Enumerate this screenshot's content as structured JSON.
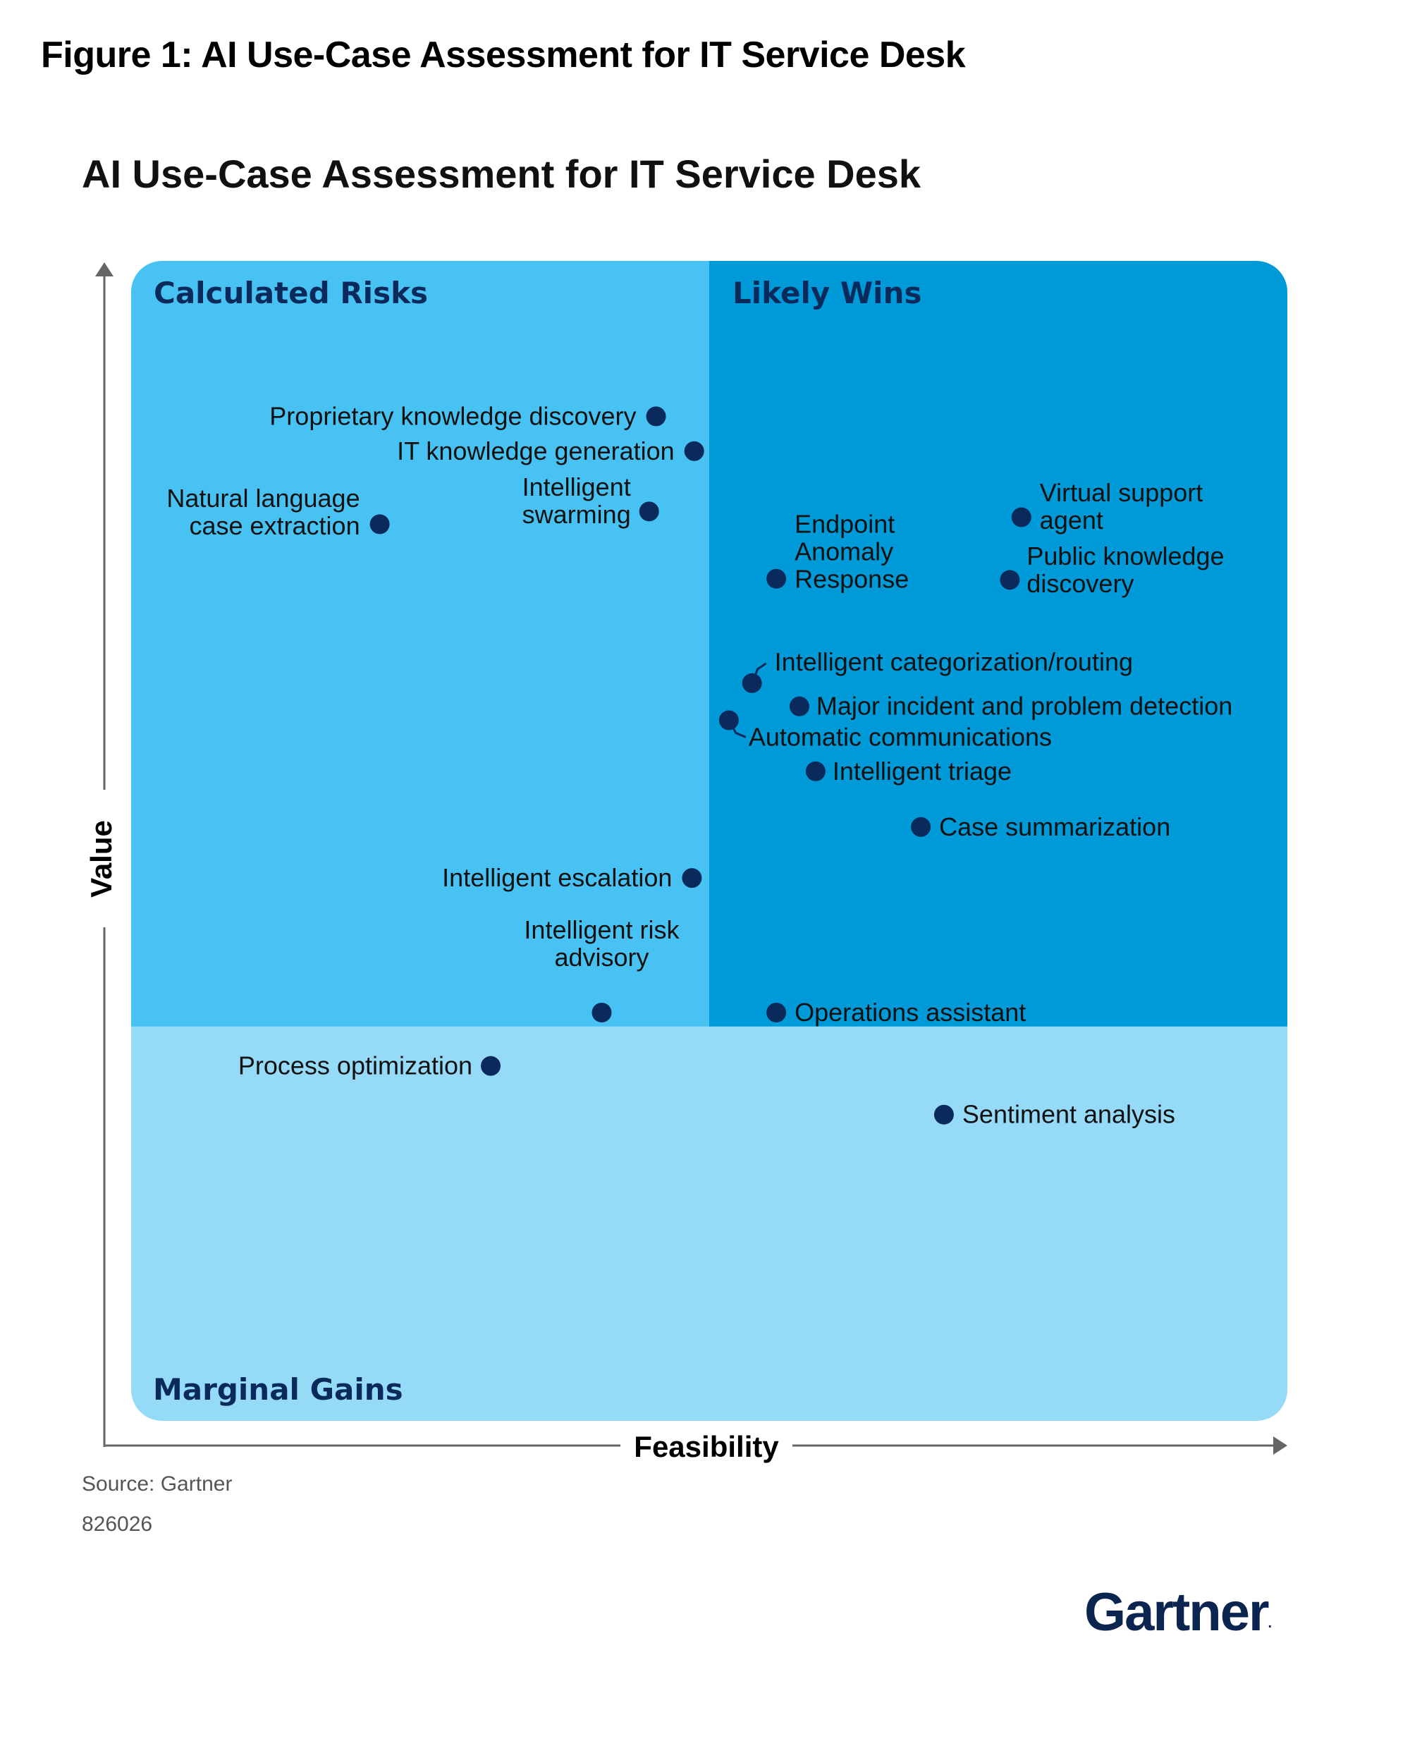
{
  "figure_caption": "Figure 1: AI Use-Case Assessment for IT Service Desk",
  "source": "Source: Gartner",
  "doc_id": "826026",
  "logo": {
    "text": "Gartner",
    "mark": "."
  },
  "colors": {
    "calculated_risks": "#48c2f2",
    "likely_wins": "#009ad8",
    "marginal_gains": "#95dbf8",
    "point": "#0b2a5c",
    "quadrant_text": "#0b2a5c",
    "axis": "#666666"
  },
  "chart_data": {
    "type": "scatter",
    "title": "AI Use-Case Assessment for IT Service Desk",
    "xlabel": "Feasibility",
    "ylabel": "Value",
    "xlim": [
      0,
      100
    ],
    "ylim": [
      0,
      100
    ],
    "feasibility_threshold": 50,
    "value_threshold": 34,
    "quadrants": {
      "top_left": "Calculated Risks",
      "top_right": "Likely Wins",
      "bottom": "Marginal Gains"
    },
    "points": [
      {
        "name": "Proprietary knowledge discovery",
        "x": 45.4,
        "y": 86.6,
        "lines": [
          "Proprietary knowledge discovery"
        ]
      },
      {
        "name": "IT knowledge generation",
        "x": 48.7,
        "y": 83.6,
        "lines": [
          "IT knowledge generation"
        ]
      },
      {
        "name": "Natural language case extraction",
        "x": 21.5,
        "y": 77.3,
        "lines": [
          "Natural language",
          "case extraction"
        ]
      },
      {
        "name": "Intelligent swarming",
        "x": 44.8,
        "y": 78.4,
        "lines": [
          "Intelligent",
          "swarming"
        ]
      },
      {
        "name": "Endpoint Anomaly Response",
        "x": 55.8,
        "y": 72.6,
        "lines": [
          "Endpoint",
          "Anomaly",
          "Response"
        ]
      },
      {
        "name": "Virtual support agent",
        "x": 77.0,
        "y": 77.9,
        "lines": [
          "Virtual support",
          "agent"
        ]
      },
      {
        "name": "Public knowledge discovery",
        "x": 76.0,
        "y": 72.5,
        "lines": [
          "Public knowledge",
          "discovery"
        ]
      },
      {
        "name": "Intelligent categorization/routing",
        "x": 53.7,
        "y": 63.6,
        "lines": [
          "Intelligent categorization/routing"
        ]
      },
      {
        "name": "Major incident and problem detection",
        "x": 57.8,
        "y": 61.6,
        "lines": [
          "Major incident and problem detection"
        ]
      },
      {
        "name": "Automatic communications",
        "x": 51.7,
        "y": 60.4,
        "lines": [
          "Automatic communications"
        ]
      },
      {
        "name": "Intelligent triage",
        "x": 59.2,
        "y": 56.0,
        "lines": [
          "Intelligent triage"
        ]
      },
      {
        "name": "Case summarization",
        "x": 68.3,
        "y": 51.2,
        "lines": [
          "Case summarization"
        ]
      },
      {
        "name": "Intelligent escalation",
        "x": 48.5,
        "y": 46.8,
        "lines": [
          "Intelligent escalation"
        ]
      },
      {
        "name": "Intelligent risk advisory",
        "x": 40.7,
        "y": 35.2,
        "lines": [
          "Intelligent risk",
          "advisory"
        ]
      },
      {
        "name": "Operations assistant",
        "x": 55.8,
        "y": 35.2,
        "lines": [
          "Operations assistant"
        ]
      },
      {
        "name": "Process optimization",
        "x": 31.1,
        "y": 30.6,
        "lines": [
          "Process optimization"
        ]
      },
      {
        "name": "Sentiment analysis",
        "x": 70.3,
        "y": 26.4,
        "lines": [
          "Sentiment analysis"
        ]
      }
    ]
  }
}
